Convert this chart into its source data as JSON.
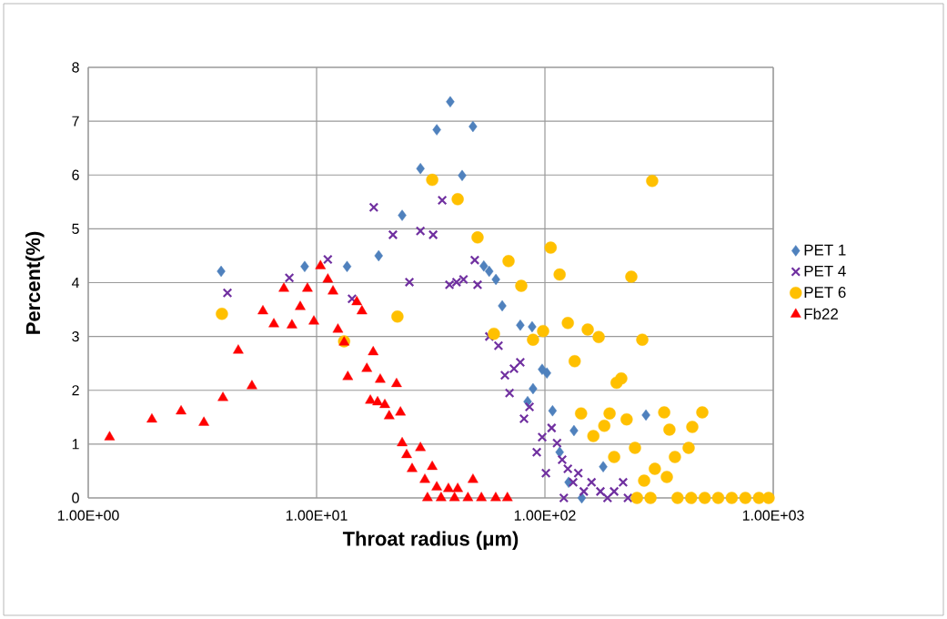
{
  "chart_data": {
    "type": "scatter",
    "xlabel": "Throat radius (μm)",
    "ylabel": "Percent(%)",
    "log": "x",
    "grid": true,
    "legend": "right",
    "xlim": [
      1,
      1000
    ],
    "ylim": [
      0,
      8
    ],
    "xticks": [
      {
        "value": 1,
        "label": "1.00E+00"
      },
      {
        "value": 10,
        "label": "1.00E+01"
      },
      {
        "value": 100,
        "label": "1.00E+02"
      },
      {
        "value": 1000,
        "label": "1.00E+03"
      }
    ],
    "yticks": [
      0,
      1,
      2,
      3,
      4,
      5,
      6,
      7,
      8
    ],
    "series": [
      {
        "name": "PET 1",
        "color": "#4f81bd",
        "marker": "diamond",
        "x": [
          3.82,
          8.87,
          13.6,
          18.7,
          23.7,
          28.5,
          33.6,
          38.5,
          48.4,
          43.4,
          54.0,
          57.0,
          61.0,
          65.0,
          78.0,
          87.9,
          97.2,
          102,
          84.0,
          88.7,
          108,
          134,
          277,
          180,
          116,
          127,
          145
        ],
        "values": [
          4.21,
          4.3,
          4.3,
          4.5,
          5.25,
          6.12,
          6.84,
          7.36,
          6.9,
          5.99,
          4.31,
          4.21,
          4.06,
          3.57,
          3.21,
          3.18,
          2.39,
          2.32,
          1.79,
          2.03,
          1.62,
          1.25,
          1.54,
          0.58,
          0.85,
          0.29,
          0
        ]
      },
      {
        "name": "PET 4",
        "color": "#7030a0",
        "marker": "cross",
        "x": [
          4.07,
          7.6,
          11.2,
          14.3,
          17.8,
          21.6,
          25.5,
          28.5,
          32.4,
          35.5,
          38.2,
          41.0,
          44.0,
          49.3,
          50.7,
          57.1,
          62.6,
          66.8,
          70.0,
          73.2,
          78.0,
          81.0,
          85.6,
          92.1,
          97.3,
          101,
          107,
          113,
          119,
          121,
          126,
          133,
          140,
          148,
          160,
          175,
          188,
          201,
          220,
          231,
          253
        ],
        "values": [
          3.81,
          4.09,
          4.43,
          3.7,
          5.4,
          4.89,
          4.01,
          4.96,
          4.89,
          5.53,
          3.96,
          4.01,
          4.06,
          4.42,
          3.96,
          3.0,
          2.83,
          2.28,
          1.95,
          2.4,
          2.52,
          1.47,
          1.69,
          0.85,
          1.13,
          0.46,
          1.3,
          1.02,
          0.71,
          0,
          0.54,
          0.29,
          0.46,
          0.12,
          0.29,
          0.12,
          0,
          0.12,
          0.29,
          0,
          0
        ]
      },
      {
        "name": "PET 6",
        "color": "#ffc000",
        "marker": "circle",
        "x": [
          3.85,
          13.2,
          22.6,
          32.1,
          41.5,
          50.7,
          59.8,
          69.3,
          78.8,
          88.7,
          98.2,
          106,
          116,
          126,
          135,
          144,
          154,
          163,
          172,
          182,
          192,
          201,
          206,
          216,
          228,
          239,
          248,
          267,
          272,
          295,
          303,
          333,
          342,
          351,
          371,
          426,
          442,
          489,
          253,
          290,
          381,
          437,
          501,
          574,
          658,
          755,
          866,
          954
        ],
        "values": [
          3.42,
          2.91,
          3.37,
          5.91,
          5.55,
          4.84,
          3.05,
          4.4,
          3.94,
          2.94,
          3.1,
          4.65,
          4.15,
          3.25,
          2.54,
          1.57,
          3.13,
          1.15,
          2.99,
          1.34,
          1.57,
          0.76,
          2.14,
          2.22,
          1.46,
          4.11,
          0.93,
          2.94,
          0.32,
          5.89,
          0.54,
          1.59,
          0.39,
          1.27,
          0.76,
          0.93,
          1.32,
          1.59,
          0,
          0,
          0,
          0,
          0,
          0,
          0,
          0,
          0,
          0
        ]
      },
      {
        "name": "Fb22",
        "color": "#ff0000",
        "marker": "triangle",
        "x": [
          1.24,
          1.9,
          2.55,
          3.21,
          3.89,
          4.54,
          5.21,
          5.82,
          6.5,
          7.19,
          7.8,
          8.48,
          9.12,
          9.73,
          10.4,
          11.2,
          11.8,
          12.4,
          13.2,
          13.7,
          15.0,
          15.8,
          16.6,
          17.7,
          19.0,
          22.4,
          17.2,
          18.5,
          19.9,
          23.3,
          20.8,
          23.7,
          28.5,
          24.8,
          32.1,
          26.2,
          29.8,
          33.6,
          37.8,
          48.4,
          41.5,
          30.6,
          35.1,
          40.2,
          46.0,
          52.7,
          60.9,
          68.5
        ],
        "values": [
          1.13,
          1.46,
          1.61,
          1.4,
          1.86,
          2.74,
          2.08,
          3.47,
          3.23,
          3.89,
          3.21,
          3.55,
          3.89,
          3.28,
          4.31,
          4.06,
          3.84,
          3.13,
          2.89,
          2.25,
          3.64,
          3.47,
          2.4,
          2.71,
          2.2,
          2.12,
          1.81,
          1.78,
          1.73,
          1.59,
          1.52,
          1.02,
          0.93,
          0.8,
          0.58,
          0.54,
          0.34,
          0.2,
          0.17,
          0.34,
          0.17,
          0,
          0,
          0,
          0,
          0,
          0,
          0
        ]
      }
    ]
  }
}
